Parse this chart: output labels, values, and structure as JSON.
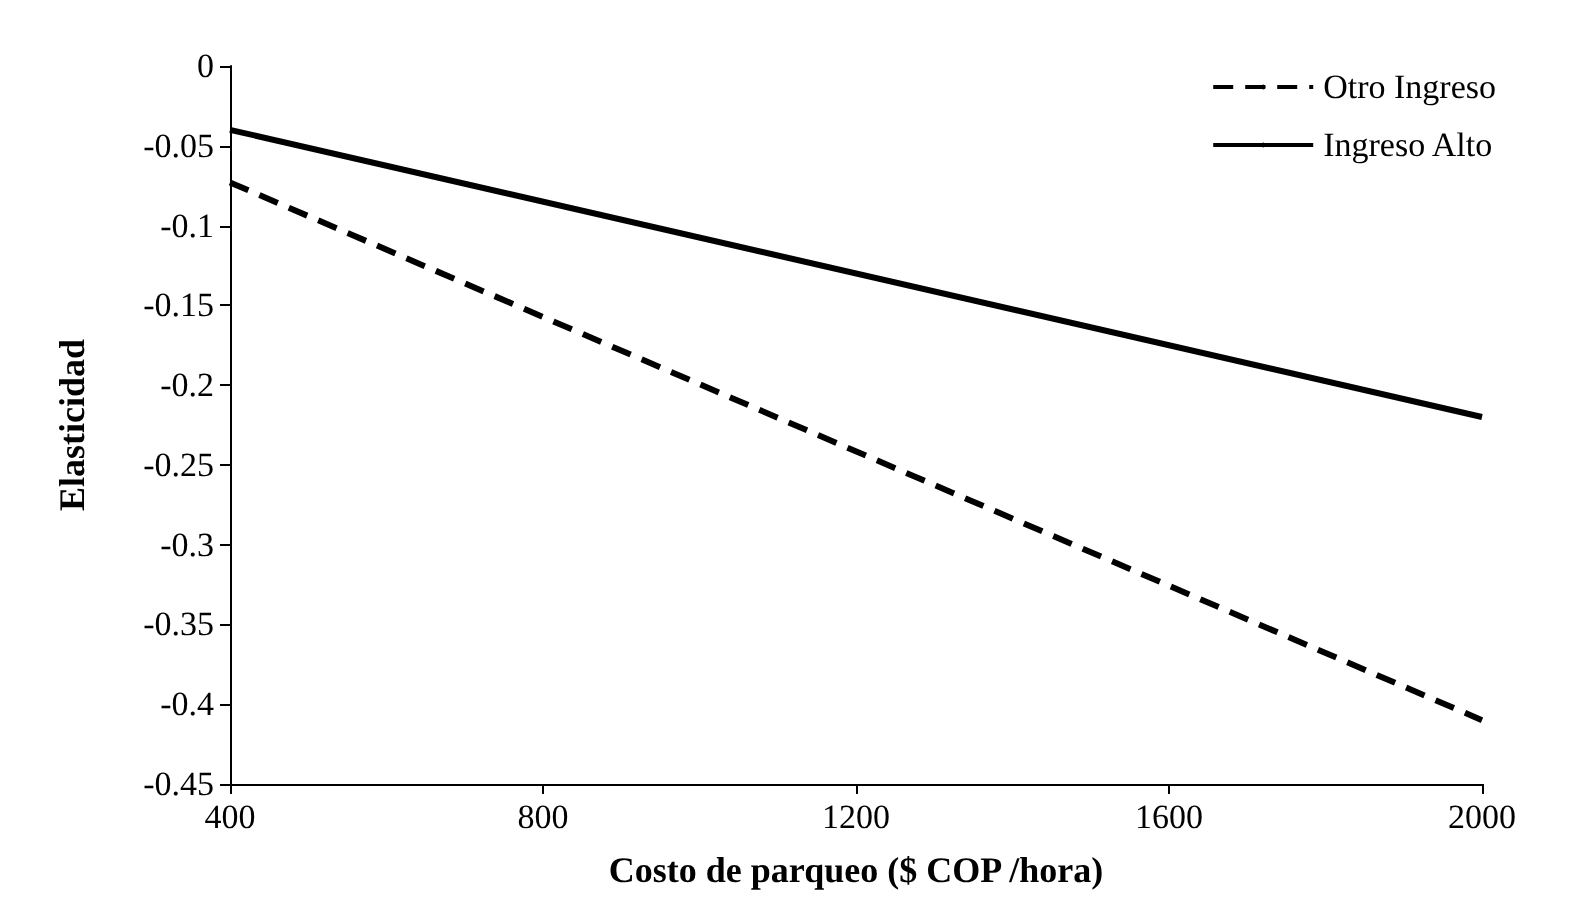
{
  "chart_data": {
    "type": "line",
    "xlabel": "Costo de parqueo ($ COP /hora)",
    "ylabel": "Elasticidad",
    "x": [
      400,
      2000
    ],
    "series": [
      {
        "name": "Otro Ingreso",
        "color": "#000000",
        "values": [
          -0.073,
          -0.41
        ],
        "line_style": "dashed"
      },
      {
        "name": "Ingreso Alto",
        "color": "#000000",
        "values": [
          -0.04,
          -0.22
        ],
        "line_style": "solid"
      }
    ],
    "xlim": [
      400,
      2000
    ],
    "xticks": [
      400,
      800,
      1200,
      1600,
      2000
    ],
    "ylim": [
      -0.45,
      0
    ],
    "yticks": [
      0,
      -0.05,
      -0.1,
      -0.15,
      -0.2,
      -0.25,
      -0.3,
      -0.35,
      -0.4,
      -0.45
    ],
    "grid": false,
    "legend": "top right",
    "marker": "none"
  }
}
